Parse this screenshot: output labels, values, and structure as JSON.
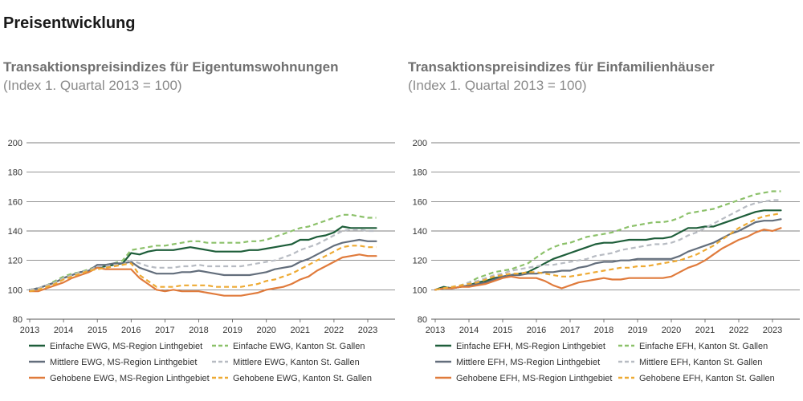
{
  "page_title": "Preisentwicklung",
  "chart_data": [
    {
      "type": "line",
      "title": "Transaktionspreisindizes für Eigentumswohnungen",
      "subtitle": "(Index 1. Quartal 2013 = 100)",
      "xlabel": "",
      "ylabel": "",
      "xlim": [
        2013,
        2023.5
      ],
      "ylim": [
        80,
        200
      ],
      "yticks": [
        80,
        100,
        120,
        140,
        160,
        180,
        200
      ],
      "xticks": [
        2013,
        2014,
        2015,
        2016,
        2017,
        2018,
        2019,
        2020,
        2021,
        2022,
        2023
      ],
      "grid": "horizontal",
      "legend": "bottom",
      "x": [
        2013.0,
        2013.25,
        2013.5,
        2013.75,
        2014.0,
        2014.25,
        2014.5,
        2014.75,
        2015.0,
        2015.25,
        2015.5,
        2015.75,
        2016.0,
        2016.25,
        2016.5,
        2016.75,
        2017.0,
        2017.25,
        2017.5,
        2017.75,
        2018.0,
        2018.25,
        2018.5,
        2018.75,
        2019.0,
        2019.25,
        2019.5,
        2019.75,
        2020.0,
        2020.25,
        2020.5,
        2020.75,
        2021.0,
        2021.25,
        2021.5,
        2021.75,
        2022.0,
        2022.25,
        2022.5,
        2022.75,
        2023.0,
        2023.25
      ],
      "series": [
        {
          "name": "Einfache EWG, MS-Region Linthgebiet",
          "color": "#1e5e3a",
          "dash": false,
          "values": [
            100,
            101,
            103,
            105,
            108,
            110,
            112,
            113,
            115,
            116,
            117,
            118,
            125,
            124,
            126,
            127,
            127,
            127,
            128,
            129,
            128,
            127,
            126,
            126,
            126,
            126,
            127,
            127,
            128,
            129,
            130,
            131,
            134,
            134,
            136,
            137,
            139,
            143,
            142,
            142,
            142,
            142
          ]
        },
        {
          "name": "Einfache EWG, Kanton St. Gallen",
          "color": "#8cc16a",
          "dash": true,
          "values": [
            100,
            101,
            103,
            106,
            109,
            111,
            112,
            114,
            116,
            117,
            118,
            120,
            127,
            128,
            129,
            130,
            130,
            131,
            132,
            133,
            133,
            132,
            132,
            132,
            132,
            132,
            133,
            133,
            134,
            136,
            138,
            140,
            142,
            143,
            145,
            147,
            149,
            151,
            151,
            150,
            149,
            149
          ]
        },
        {
          "name": "Mittlere EWG, MS-Region Linthgebiet",
          "color": "#636e7c",
          "dash": false,
          "values": [
            100,
            101,
            103,
            105,
            108,
            110,
            112,
            113,
            117,
            117,
            118,
            118,
            119,
            115,
            113,
            111,
            111,
            111,
            112,
            112,
            113,
            112,
            111,
            110,
            110,
            110,
            110,
            111,
            112,
            114,
            115,
            116,
            119,
            121,
            124,
            127,
            130,
            132,
            133,
            134,
            133,
            133
          ]
        },
        {
          "name": "Mittlere EWG, Kanton St. Gallen",
          "color": "#b8bcc3",
          "dash": true,
          "values": [
            100,
            101,
            103,
            105,
            108,
            110,
            112,
            113,
            116,
            116,
            117,
            117,
            120,
            118,
            116,
            115,
            115,
            115,
            116,
            116,
            117,
            116,
            116,
            116,
            116,
            116,
            117,
            118,
            119,
            120,
            122,
            124,
            127,
            129,
            131,
            134,
            137,
            140,
            141,
            141,
            140,
            140
          ]
        },
        {
          "name": "Gehobene EWG, MS-Region Linthgebiet",
          "color": "#e07b3c",
          "dash": false,
          "values": [
            99,
            99,
            101,
            103,
            105,
            108,
            110,
            112,
            115,
            114,
            114,
            114,
            114,
            108,
            104,
            100,
            99,
            100,
            99,
            99,
            99,
            98,
            97,
            96,
            96,
            96,
            97,
            98,
            100,
            101,
            102,
            104,
            107,
            109,
            113,
            116,
            119,
            122,
            123,
            124,
            123,
            123
          ]
        },
        {
          "name": "Gehobene EWG, Kanton St. Gallen",
          "color": "#eeaa33",
          "dash": true,
          "values": [
            99,
            100,
            102,
            104,
            107,
            109,
            111,
            113,
            114,
            115,
            116,
            117,
            118,
            110,
            106,
            102,
            102,
            102,
            103,
            103,
            103,
            103,
            102,
            102,
            102,
            102,
            103,
            104,
            106,
            107,
            109,
            111,
            114,
            117,
            120,
            123,
            126,
            129,
            130,
            130,
            129,
            129
          ]
        }
      ]
    },
    {
      "type": "line",
      "title": "Transaktionspreisindizes für Einfamilienhäuser",
      "subtitle": "(Index 1. Quartal 2013 = 100)",
      "xlabel": "",
      "ylabel": "",
      "xlim": [
        2013,
        2023.5
      ],
      "ylim": [
        80,
        200
      ],
      "yticks": [
        80,
        100,
        120,
        140,
        160,
        180,
        200
      ],
      "xticks": [
        2013,
        2014,
        2015,
        2016,
        2017,
        2018,
        2019,
        2020,
        2021,
        2022,
        2023
      ],
      "grid": "horizontal",
      "legend": "bottom",
      "x": [
        2013.0,
        2013.25,
        2013.5,
        2013.75,
        2014.0,
        2014.25,
        2014.5,
        2014.75,
        2015.0,
        2015.25,
        2015.5,
        2015.75,
        2016.0,
        2016.25,
        2016.5,
        2016.75,
        2017.0,
        2017.25,
        2017.5,
        2017.75,
        2018.0,
        2018.25,
        2018.5,
        2018.75,
        2019.0,
        2019.25,
        2019.5,
        2019.75,
        2020.0,
        2020.25,
        2020.5,
        2020.75,
        2021.0,
        2021.25,
        2021.5,
        2021.75,
        2022.0,
        2022.25,
        2022.5,
        2022.75,
        2023.0,
        2023.25
      ],
      "series": [
        {
          "name": "Einfache EFH, MS-Region Linthgebiet",
          "color": "#1e5e3a",
          "dash": false,
          "values": [
            100,
            102,
            101,
            102,
            103,
            105,
            106,
            108,
            109,
            110,
            111,
            112,
            115,
            118,
            121,
            123,
            125,
            127,
            129,
            131,
            132,
            132,
            133,
            134,
            134,
            134,
            135,
            135,
            136,
            139,
            142,
            142,
            143,
            143,
            145,
            147,
            149,
            151,
            153,
            154,
            154,
            154
          ]
        },
        {
          "name": "Einfache EFH, Kanton St. Gallen",
          "color": "#8cc16a",
          "dash": true,
          "values": [
            100,
            101,
            102,
            103,
            105,
            108,
            110,
            112,
            113,
            114,
            116,
            118,
            122,
            126,
            129,
            131,
            132,
            134,
            136,
            137,
            138,
            139,
            141,
            143,
            144,
            145,
            146,
            146,
            147,
            149,
            152,
            153,
            154,
            155,
            157,
            159,
            161,
            163,
            165,
            166,
            167,
            167
          ]
        },
        {
          "name": "Mittlere EFH, MS-Region Linthgebiet",
          "color": "#636e7c",
          "dash": false,
          "values": [
            100,
            101,
            101,
            102,
            103,
            104,
            105,
            107,
            109,
            110,
            110,
            111,
            111,
            112,
            112,
            113,
            113,
            115,
            116,
            118,
            119,
            119,
            120,
            120,
            121,
            121,
            121,
            121,
            121,
            123,
            126,
            128,
            130,
            132,
            135,
            138,
            140,
            143,
            146,
            147,
            147,
            148
          ]
        },
        {
          "name": "Mittlere EFH, Kanton St. Gallen",
          "color": "#b8bcc3",
          "dash": true,
          "values": [
            100,
            101,
            102,
            103,
            105,
            106,
            108,
            110,
            111,
            113,
            114,
            115,
            116,
            117,
            117,
            118,
            119,
            120,
            121,
            123,
            124,
            125,
            127,
            128,
            129,
            130,
            131,
            131,
            132,
            134,
            137,
            139,
            142,
            145,
            148,
            151,
            154,
            157,
            159,
            160,
            161,
            161
          ]
        },
        {
          "name": "Gehobene EFH, MS-Region Linthgebiet",
          "color": "#e07b3c",
          "dash": false,
          "values": [
            100,
            101,
            101,
            102,
            102,
            103,
            104,
            106,
            108,
            109,
            108,
            108,
            108,
            106,
            103,
            101,
            103,
            105,
            106,
            107,
            108,
            107,
            107,
            108,
            108,
            108,
            108,
            108,
            109,
            112,
            115,
            117,
            120,
            124,
            128,
            131,
            134,
            136,
            139,
            141,
            140,
            142
          ]
        },
        {
          "name": "Gehobene EFH, Kanton St. Gallen",
          "color": "#eeaa33",
          "dash": true,
          "values": [
            100,
            101,
            102,
            103,
            104,
            105,
            107,
            109,
            110,
            111,
            111,
            112,
            112,
            111,
            110,
            109,
            109,
            110,
            111,
            112,
            113,
            114,
            115,
            115,
            116,
            116,
            117,
            118,
            119,
            120,
            122,
            124,
            127,
            130,
            134,
            138,
            142,
            145,
            148,
            150,
            151,
            152
          ]
        }
      ]
    }
  ]
}
